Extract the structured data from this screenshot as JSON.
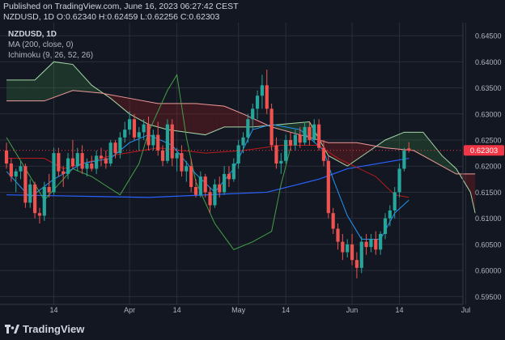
{
  "header": {
    "published": "Published on TradingView.com, June 16, 2023 06:27:42 CEST",
    "ohlc": "NZDUSD, 1D  O:0.62340  H:0.62459  L:0.62256  C:0.62303"
  },
  "legend": {
    "symbol": "NZDUSD, 1D",
    "ma": "MA (200, close, 0)",
    "ichimoku": "Ichimoku (9, 26, 52, 26)"
  },
  "footer": {
    "brand": "TradingView"
  },
  "colors": {
    "bg": "#131722",
    "up": "#26a69a",
    "down": "#ef5350",
    "ma": "#2962ff",
    "tenkan": "#2196f3",
    "kijun": "#b71c1c",
    "chikou": "#43a047",
    "spanA": "#a5d6a7",
    "spanB": "#ef9a9a",
    "price_label": "#f23645"
  },
  "chart_data": {
    "type": "candlestick",
    "title": "NZDUSD, 1D",
    "ylim": [
      0.5935,
      0.6475
    ],
    "y_ticks": [
      "0.64500",
      "0.64000",
      "0.63500",
      "0.63000",
      "0.62500",
      "0.62000",
      "0.61500",
      "0.61000",
      "0.60500",
      "0.60000",
      "0.59500"
    ],
    "x_ticks": [
      {
        "label": "14",
        "index": 10
      },
      {
        "label": "Apr",
        "index": 26
      },
      {
        "label": "14",
        "index": 36
      },
      {
        "label": "May",
        "index": 49
      },
      {
        "label": "14",
        "index": 59
      },
      {
        "label": "Jun",
        "index": 73
      },
      {
        "label": "14",
        "index": 83
      },
      {
        "label": "Jul",
        "index": 97
      }
    ],
    "last_price": "0.62303",
    "last_value": 0.62303,
    "candles": [
      [
        0.623,
        0.6245,
        0.6195,
        0.6205
      ],
      [
        0.6205,
        0.6215,
        0.617,
        0.618
      ],
      [
        0.618,
        0.6195,
        0.615,
        0.619
      ],
      [
        0.619,
        0.621,
        0.6175,
        0.62
      ],
      [
        0.62,
        0.6205,
        0.612,
        0.613
      ],
      [
        0.613,
        0.6175,
        0.612,
        0.6165
      ],
      [
        0.6165,
        0.617,
        0.61,
        0.611
      ],
      [
        0.611,
        0.612,
        0.609,
        0.6105
      ],
      [
        0.6105,
        0.617,
        0.6095,
        0.616
      ],
      [
        0.616,
        0.6185,
        0.614,
        0.615
      ],
      [
        0.615,
        0.6235,
        0.6145,
        0.6225
      ],
      [
        0.6225,
        0.6235,
        0.618,
        0.619
      ],
      [
        0.619,
        0.62,
        0.616,
        0.6185
      ],
      [
        0.6185,
        0.6225,
        0.6175,
        0.6215
      ],
      [
        0.6215,
        0.625,
        0.6195,
        0.62
      ],
      [
        0.62,
        0.6235,
        0.619,
        0.6225
      ],
      [
        0.6225,
        0.624,
        0.6185,
        0.6195
      ],
      [
        0.6195,
        0.6215,
        0.618,
        0.6205
      ],
      [
        0.6205,
        0.622,
        0.619,
        0.6195
      ],
      [
        0.6195,
        0.623,
        0.6185,
        0.622
      ],
      [
        0.622,
        0.6235,
        0.62,
        0.6215
      ],
      [
        0.6215,
        0.623,
        0.6195,
        0.6205
      ],
      [
        0.6205,
        0.625,
        0.62,
        0.6245
      ],
      [
        0.6245,
        0.625,
        0.6215,
        0.6225
      ],
      [
        0.6225,
        0.6265,
        0.6215,
        0.6255
      ],
      [
        0.6255,
        0.6285,
        0.6245,
        0.627
      ],
      [
        0.627,
        0.6305,
        0.626,
        0.629
      ],
      [
        0.629,
        0.63,
        0.625,
        0.6255
      ],
      [
        0.6255,
        0.6275,
        0.623,
        0.6265
      ],
      [
        0.6265,
        0.629,
        0.625,
        0.628
      ],
      [
        0.628,
        0.6295,
        0.623,
        0.624
      ],
      [
        0.624,
        0.627,
        0.623,
        0.626
      ],
      [
        0.626,
        0.6285,
        0.622,
        0.623
      ],
      [
        0.623,
        0.624,
        0.62,
        0.621
      ],
      [
        0.621,
        0.629,
        0.6205,
        0.628
      ],
      [
        0.628,
        0.629,
        0.62,
        0.6215
      ],
      [
        0.6215,
        0.6235,
        0.619,
        0.6225
      ],
      [
        0.6225,
        0.624,
        0.618,
        0.619
      ],
      [
        0.619,
        0.621,
        0.617,
        0.62
      ],
      [
        0.62,
        0.6215,
        0.615,
        0.616
      ],
      [
        0.616,
        0.6175,
        0.614,
        0.6145
      ],
      [
        0.6145,
        0.619,
        0.614,
        0.618
      ],
      [
        0.618,
        0.6185,
        0.614,
        0.615
      ],
      [
        0.615,
        0.616,
        0.611,
        0.6125
      ],
      [
        0.6125,
        0.6175,
        0.612,
        0.6165
      ],
      [
        0.6165,
        0.618,
        0.614,
        0.615
      ],
      [
        0.615,
        0.62,
        0.6145,
        0.6185
      ],
      [
        0.6185,
        0.62,
        0.616,
        0.6175
      ],
      [
        0.6175,
        0.6215,
        0.617,
        0.6205
      ],
      [
        0.6205,
        0.625,
        0.6195,
        0.624
      ],
      [
        0.624,
        0.6265,
        0.6225,
        0.6255
      ],
      [
        0.6255,
        0.63,
        0.6245,
        0.629
      ],
      [
        0.629,
        0.632,
        0.627,
        0.631
      ],
      [
        0.631,
        0.6345,
        0.629,
        0.6335
      ],
      [
        0.6335,
        0.6375,
        0.631,
        0.6355
      ],
      [
        0.6355,
        0.6385,
        0.63,
        0.631
      ],
      [
        0.631,
        0.632,
        0.623,
        0.624
      ],
      [
        0.624,
        0.6255,
        0.6195,
        0.6205
      ],
      [
        0.6205,
        0.6225,
        0.6185,
        0.621
      ],
      [
        0.621,
        0.626,
        0.6205,
        0.625
      ],
      [
        0.625,
        0.6265,
        0.623,
        0.624
      ],
      [
        0.624,
        0.627,
        0.623,
        0.626
      ],
      [
        0.626,
        0.6275,
        0.6235,
        0.6245
      ],
      [
        0.6245,
        0.6285,
        0.624,
        0.6275
      ],
      [
        0.6275,
        0.6285,
        0.624,
        0.625
      ],
      [
        0.625,
        0.629,
        0.6245,
        0.628
      ],
      [
        0.628,
        0.629,
        0.623,
        0.6235
      ],
      [
        0.6235,
        0.625,
        0.62,
        0.621
      ],
      [
        0.621,
        0.622,
        0.61,
        0.611
      ],
      [
        0.611,
        0.612,
        0.607,
        0.608
      ],
      [
        0.608,
        0.609,
        0.604,
        0.6055
      ],
      [
        0.6055,
        0.607,
        0.602,
        0.6035
      ],
      [
        0.6035,
        0.606,
        0.6025,
        0.605
      ],
      [
        0.605,
        0.607,
        0.601,
        0.602
      ],
      [
        0.602,
        0.6035,
        0.5985,
        0.6005
      ],
      [
        0.6005,
        0.6065,
        0.5995,
        0.6055
      ],
      [
        0.6055,
        0.607,
        0.603,
        0.6045
      ],
      [
        0.6045,
        0.607,
        0.6035,
        0.606
      ],
      [
        0.606,
        0.6075,
        0.603,
        0.604
      ],
      [
        0.604,
        0.6075,
        0.603,
        0.607
      ],
      [
        0.607,
        0.611,
        0.606,
        0.61
      ],
      [
        0.61,
        0.6125,
        0.6085,
        0.6115
      ],
      [
        0.6115,
        0.616,
        0.61,
        0.615
      ],
      [
        0.615,
        0.6205,
        0.614,
        0.6195
      ],
      [
        0.6195,
        0.6235,
        0.619,
        0.623
      ],
      [
        0.6234,
        0.6246,
        0.6226,
        0.623
      ]
    ],
    "ma200": [
      [
        0,
        0.6145
      ],
      [
        30,
        0.614
      ],
      [
        55,
        0.615
      ],
      [
        66,
        0.6175
      ],
      [
        72,
        0.6195
      ],
      [
        85,
        0.6215
      ]
    ],
    "tenkan": [
      [
        0,
        0.619
      ],
      [
        5,
        0.614
      ],
      [
        10,
        0.6175
      ],
      [
        16,
        0.6205
      ],
      [
        22,
        0.6215
      ],
      [
        26,
        0.6245
      ],
      [
        30,
        0.626
      ],
      [
        35,
        0.624
      ],
      [
        40,
        0.6185
      ],
      [
        44,
        0.615
      ],
      [
        48,
        0.6195
      ],
      [
        52,
        0.627
      ],
      [
        56,
        0.628
      ],
      [
        62,
        0.627
      ],
      [
        67,
        0.623
      ],
      [
        69,
        0.6175
      ],
      [
        72,
        0.6105
      ],
      [
        75,
        0.606
      ],
      [
        79,
        0.606
      ],
      [
        82,
        0.611
      ],
      [
        85,
        0.6135
      ]
    ],
    "kijun": [
      [
        0,
        0.6215
      ],
      [
        8,
        0.6215
      ],
      [
        12,
        0.6195
      ],
      [
        22,
        0.622
      ],
      [
        32,
        0.6235
      ],
      [
        42,
        0.6225
      ],
      [
        50,
        0.623
      ],
      [
        58,
        0.624
      ],
      [
        66,
        0.624
      ],
      [
        70,
        0.6215
      ],
      [
        78,
        0.618
      ],
      [
        82,
        0.6145
      ],
      [
        85,
        0.614
      ]
    ],
    "chikou": [
      [
        0,
        0.6255
      ],
      [
        4,
        0.6195
      ],
      [
        8,
        0.6135
      ],
      [
        14,
        0.6195
      ],
      [
        18,
        0.618
      ],
      [
        24,
        0.6145
      ],
      [
        28,
        0.6205
      ],
      [
        30,
        0.6265
      ],
      [
        34,
        0.6345
      ],
      [
        36,
        0.6375
      ],
      [
        38,
        0.6255
      ],
      [
        40,
        0.617
      ],
      [
        44,
        0.609
      ],
      [
        48,
        0.604
      ],
      [
        52,
        0.6055
      ],
      [
        56,
        0.6075
      ],
      [
        58,
        0.6165
      ],
      [
        60,
        0.6235
      ]
    ],
    "spanA": [
      [
        0,
        0.6365
      ],
      [
        6,
        0.6365
      ],
      [
        10,
        0.64
      ],
      [
        14,
        0.6395
      ],
      [
        18,
        0.6355
      ],
      [
        22,
        0.633
      ],
      [
        26,
        0.63
      ],
      [
        30,
        0.628
      ],
      [
        34,
        0.627
      ],
      [
        38,
        0.6265
      ],
      [
        42,
        0.626
      ],
      [
        46,
        0.6275
      ],
      [
        52,
        0.6275
      ],
      [
        58,
        0.628
      ],
      [
        64,
        0.6285
      ],
      [
        68,
        0.622
      ],
      [
        72,
        0.62
      ],
      [
        76,
        0.6225
      ],
      [
        80,
        0.625
      ],
      [
        84,
        0.6265
      ],
      [
        88,
        0.6265
      ],
      [
        92,
        0.622
      ],
      [
        95,
        0.6195
      ],
      [
        98,
        0.615
      ],
      [
        99,
        0.611
      ]
    ],
    "spanB": [
      [
        0,
        0.6325
      ],
      [
        8,
        0.6325
      ],
      [
        14,
        0.6345
      ],
      [
        20,
        0.634
      ],
      [
        26,
        0.633
      ],
      [
        32,
        0.632
      ],
      [
        40,
        0.632
      ],
      [
        46,
        0.6315
      ],
      [
        50,
        0.63
      ],
      [
        56,
        0.6275
      ],
      [
        62,
        0.626
      ],
      [
        68,
        0.6245
      ],
      [
        74,
        0.6245
      ],
      [
        80,
        0.6235
      ],
      [
        86,
        0.623
      ],
      [
        92,
        0.62
      ],
      [
        95,
        0.6185
      ],
      [
        99,
        0.6185
      ]
    ]
  }
}
